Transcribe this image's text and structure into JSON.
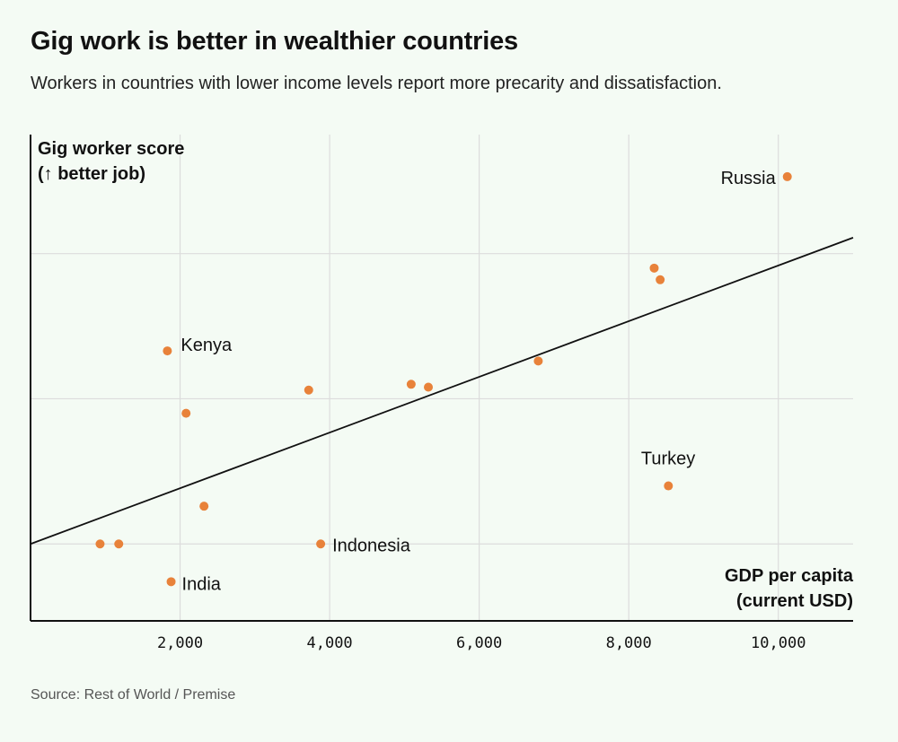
{
  "header": {
    "title": "Gig work is better in wealthier countries",
    "subtitle": "Workers in countries with lower income levels report more precarity and dissatisfaction."
  },
  "footer": {
    "source": "Source: Rest of World / Premise"
  },
  "chart_data": {
    "type": "scatter",
    "title": "Gig work is better in wealthier countries",
    "subtitle": "Workers in countries with lower income levels report more precarity and dissatisfaction.",
    "xlabel": [
      "GDP per capita",
      "(current USD)"
    ],
    "ylabel": [
      "Gig worker score",
      "(↑ better job)"
    ],
    "xlim": [
      0,
      11000
    ],
    "ylim": [
      0,
      3.35
    ],
    "x_ticks": [
      2000,
      4000,
      6000,
      8000,
      10000
    ],
    "x_tick_labels": [
      "2,000",
      "4,000",
      "6,000",
      "8,000",
      "10,000"
    ],
    "y_gridlines": [
      0.53,
      1.53,
      2.53
    ],
    "grid": true,
    "y_tick_labels_shown": false,
    "point_color": "#e8823a",
    "line_color": "#111111",
    "trend_line": {
      "x": [
        0,
        11000
      ],
      "y": [
        0.53,
        2.64
      ]
    },
    "points": [
      {
        "x": 930,
        "y": 0.53,
        "label": ""
      },
      {
        "x": 1180,
        "y": 0.53,
        "label": ""
      },
      {
        "x": 1880,
        "y": 0.27,
        "label": "India"
      },
      {
        "x": 1830,
        "y": 1.86,
        "label": "Kenya"
      },
      {
        "x": 2080,
        "y": 1.43,
        "label": ""
      },
      {
        "x": 2320,
        "y": 0.79,
        "label": ""
      },
      {
        "x": 3720,
        "y": 1.59,
        "label": ""
      },
      {
        "x": 3880,
        "y": 0.53,
        "label": "Indonesia"
      },
      {
        "x": 5090,
        "y": 1.63,
        "label": ""
      },
      {
        "x": 5320,
        "y": 1.61,
        "label": ""
      },
      {
        "x": 6790,
        "y": 1.79,
        "label": ""
      },
      {
        "x": 8340,
        "y": 2.43,
        "label": ""
      },
      {
        "x": 8420,
        "y": 2.35,
        "label": ""
      },
      {
        "x": 8530,
        "y": 0.93,
        "label": "Turkey"
      },
      {
        "x": 10120,
        "y": 3.06,
        "label": "Russia"
      }
    ]
  }
}
